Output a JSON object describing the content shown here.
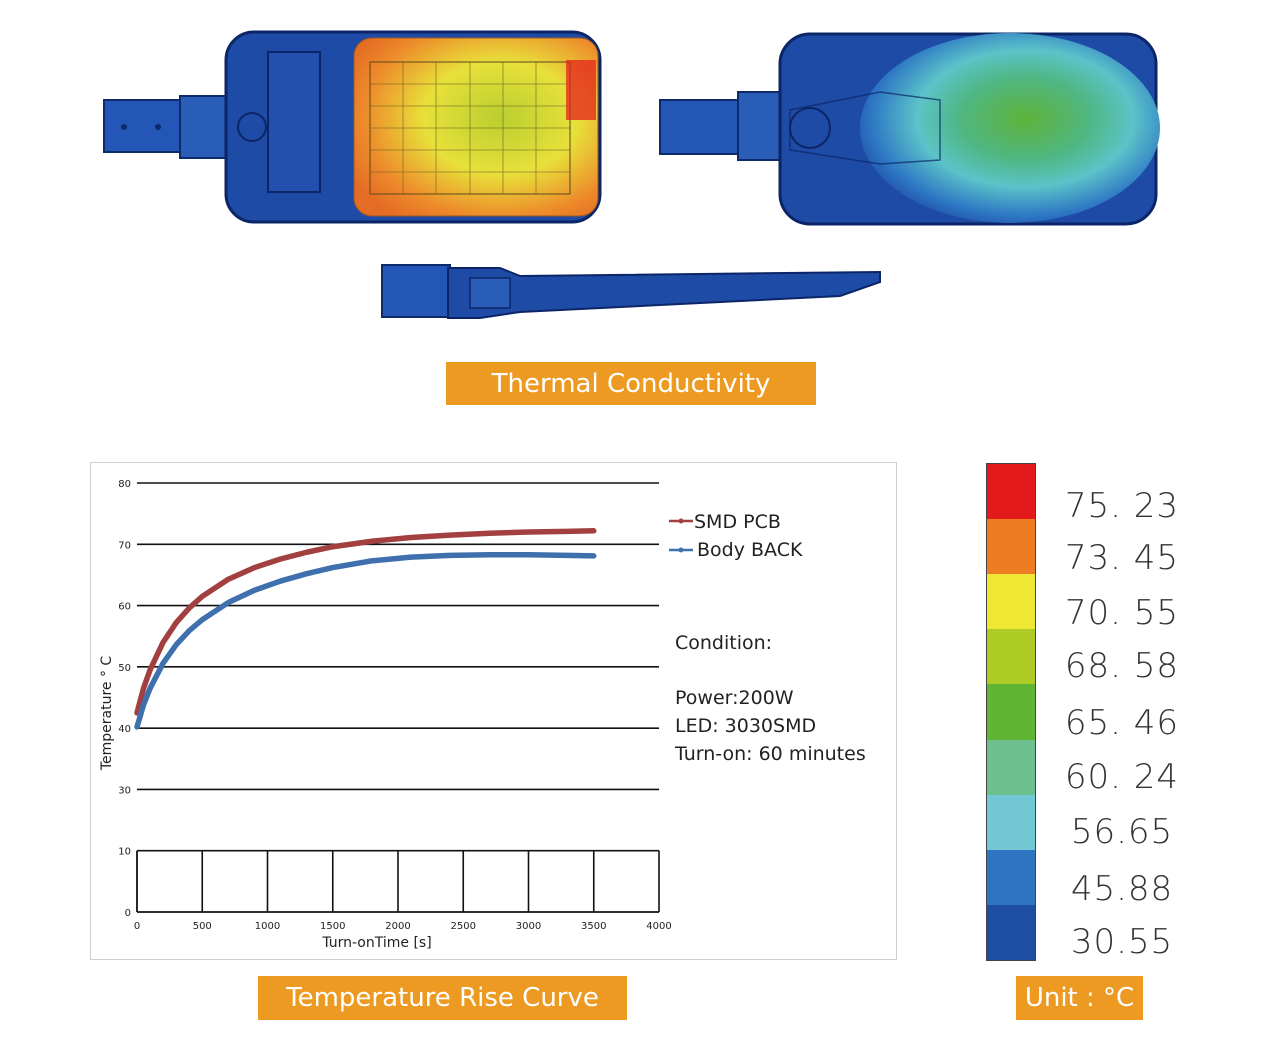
{
  "captions": {
    "thermal": "Thermal Conductivity",
    "rise_curve": "Temperature Rise Curve",
    "unit": "Unit : °C"
  },
  "conditions": {
    "heading": "Condition:",
    "power": "Power:200W",
    "led": "LED: 3030SMD",
    "turn_on": "Turn-on: 60 minutes"
  },
  "colors": {
    "accent": "#ec9a22",
    "smd_pcb": "#a23f3f",
    "body_back": "#3f70ad",
    "thermal_cool": "#1f48a8"
  },
  "colorbar": {
    "values": [
      "75. 23",
      "73. 45",
      "70. 55",
      "68. 58",
      "65. 46",
      "60. 24",
      "56.65",
      "45.88",
      "30.55"
    ],
    "colors": [
      "#e3191b",
      "#ed7c23",
      "#eee835",
      "#aecb26",
      "#60b534",
      "#6fc08f",
      "#72c8d5",
      "#2f74c0",
      "#1e4ea3"
    ]
  },
  "chart_data": {
    "type": "line",
    "xlabel": "Turn-onTime [s]",
    "ylabel": "Temperature ° C",
    "xlim": [
      0,
      4000
    ],
    "ylim": [
      0,
      80
    ],
    "x_ticks": [
      0,
      500,
      1000,
      1500,
      2000,
      2500,
      3000,
      3500,
      4000
    ],
    "y_ticks": [
      0,
      10,
      30,
      40,
      50,
      60,
      70,
      80
    ],
    "grid": true,
    "legend_position": "top-right",
    "series": [
      {
        "name": "SMD PCB",
        "x": [
          0,
          50,
          100,
          200,
          300,
          400,
          500,
          700,
          900,
          1100,
          1300,
          1500,
          1800,
          2100,
          2400,
          2700,
          3000,
          3300,
          3500
        ],
        "values": [
          42.5,
          46.5,
          49.5,
          54,
          57.2,
          59.6,
          61.5,
          64.3,
          66.2,
          67.6,
          68.7,
          69.6,
          70.5,
          71.1,
          71.5,
          71.8,
          72.0,
          72.1,
          72.2
        ]
      },
      {
        "name": "Body BACK",
        "x": [
          0,
          50,
          100,
          200,
          300,
          400,
          500,
          700,
          900,
          1100,
          1300,
          1500,
          1800,
          2100,
          2400,
          2700,
          3000,
          3300,
          3500
        ],
        "values": [
          40.2,
          43.8,
          46.5,
          50.6,
          53.6,
          55.9,
          57.7,
          60.5,
          62.5,
          64.0,
          65.2,
          66.2,
          67.3,
          67.9,
          68.2,
          68.3,
          68.3,
          68.2,
          68.1
        ]
      }
    ]
  }
}
